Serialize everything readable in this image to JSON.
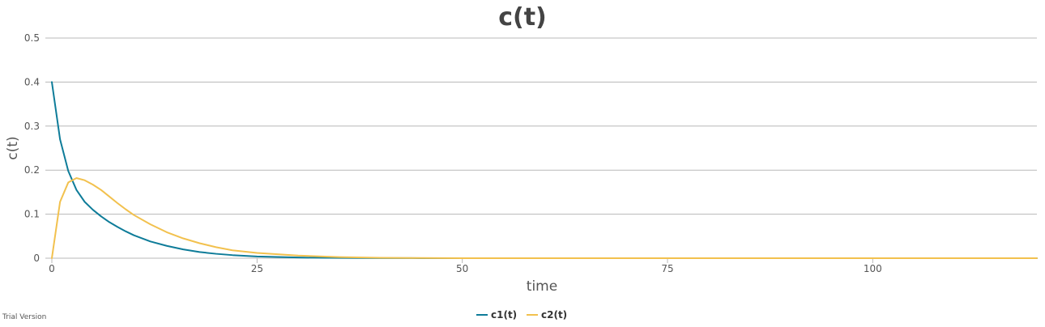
{
  "chart_data": {
    "type": "line",
    "title": "c(t)",
    "xlabel": "time",
    "ylabel": "c(t)",
    "xlim": [
      0,
      120
    ],
    "ylim": [
      0,
      0.5
    ],
    "x_ticks": [
      0,
      25,
      50,
      75,
      100
    ],
    "y_ticks": [
      0,
      0.1,
      0.2,
      0.3,
      0.4,
      0.5
    ],
    "x_tick_labels": [
      "0",
      "25",
      "50",
      "75",
      "100"
    ],
    "y_tick_labels": [
      "0",
      "0.1",
      "0.2",
      "0.3",
      "0.4",
      "0.5"
    ],
    "grid": true,
    "legend_position": "bottom-center",
    "x": [
      0,
      1,
      2,
      3,
      4,
      5,
      6,
      7,
      8,
      9,
      10,
      12,
      14,
      16,
      18,
      20,
      22,
      25,
      30,
      35,
      40,
      45,
      50,
      60,
      70,
      80,
      90,
      100,
      110,
      120
    ],
    "series": [
      {
        "name": "c1(t)",
        "color": "#0e7c99",
        "values": [
          0.4,
          0.27,
          0.198,
          0.155,
          0.128,
          0.11,
          0.095,
          0.082,
          0.071,
          0.061,
          0.052,
          0.038,
          0.028,
          0.02,
          0.014,
          0.01,
          0.007,
          0.004,
          0.0015,
          0.0006,
          0.0002,
          0.0001,
          0,
          0,
          0,
          0,
          0,
          0,
          0,
          0
        ]
      },
      {
        "name": "c2(t)",
        "color": "#f2c14e",
        "values": [
          0,
          0.128,
          0.172,
          0.182,
          0.177,
          0.167,
          0.155,
          0.14,
          0.125,
          0.111,
          0.098,
          0.077,
          0.059,
          0.045,
          0.034,
          0.025,
          0.018,
          0.012,
          0.006,
          0.0025,
          0.001,
          0.0004,
          0.0001,
          0,
          0,
          0,
          0,
          0,
          0,
          0
        ]
      }
    ]
  },
  "watermark": "Trial Version"
}
